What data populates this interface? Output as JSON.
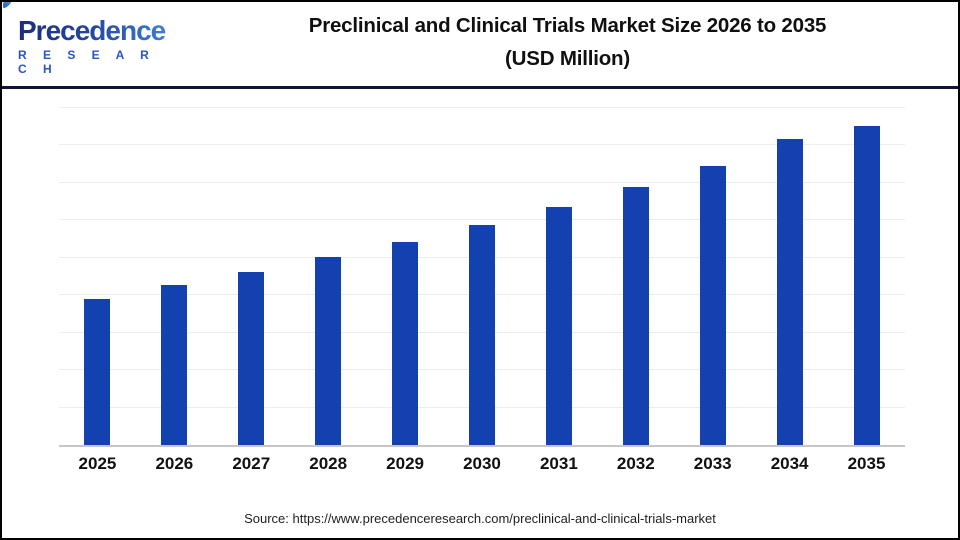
{
  "logo": {
    "name": "Precedence",
    "subtitle": "R E S E A R C H"
  },
  "header": {
    "title_line1": "Preclinical and Clinical Trials Market Size 2026 to 2035",
    "title_line2": "(USD Million)"
  },
  "chart_data": {
    "type": "bar",
    "title": "Preclinical and Clinical Trials Market Size 2026 to 2035 (USD Million)",
    "categories": [
      "2025",
      "2026",
      "2027",
      "2028",
      "2029",
      "2030",
      "2031",
      "2032",
      "2033",
      "2034",
      "2035"
    ],
    "values": [
      78000,
      85500,
      92500,
      100500,
      108500,
      117500,
      127000,
      138000,
      149000,
      163500,
      170500
    ],
    "values_note": "estimated from gridlines; no y-axis tick labels are shown in the image",
    "xlabel": "",
    "ylabel": "",
    "ylim": [
      0,
      180000
    ],
    "gridline_step": 20000,
    "grid": "horizontal-only",
    "legend": "none",
    "bar_color": "#1341b0"
  },
  "colors": {
    "bar": "#1341b0",
    "header_rule": "#101238",
    "gridline": "#ededed",
    "axis_baseline": "#c6c6c6",
    "logo_navy": "#1c2d7c",
    "logo_blue": "#3f86d8",
    "research_blue": "#2a55c9"
  },
  "footer": {
    "source": "Source: https://www.precedenceresearch.com/preclinical-and-clinical-trials-market"
  }
}
